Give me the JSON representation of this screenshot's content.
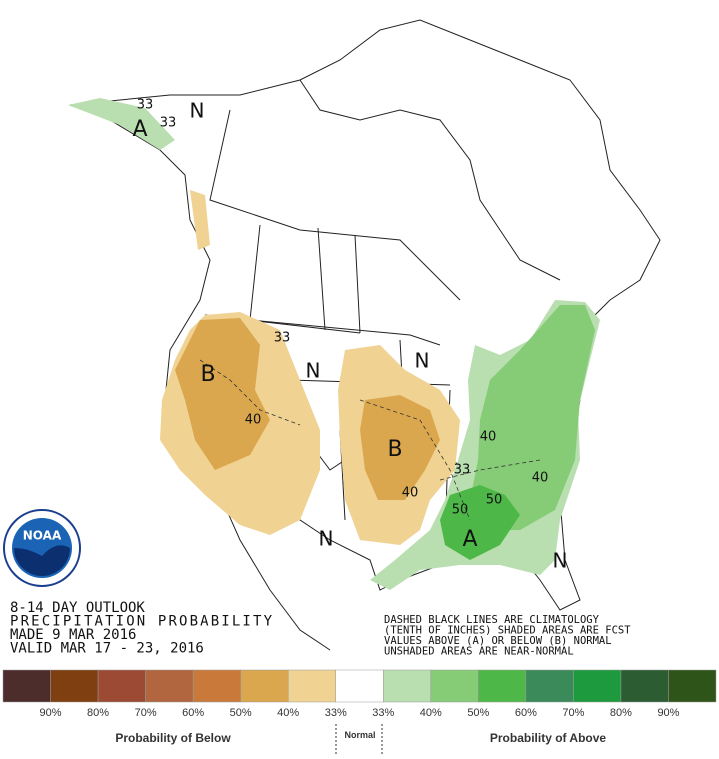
{
  "map": {
    "labels": [
      "A",
      "33",
      "33",
      "N",
      "B",
      "33",
      "N",
      "40",
      "N",
      "B",
      "40",
      "33",
      "40",
      "50",
      "50",
      "A",
      "40",
      "N",
      "N"
    ]
  },
  "logo": "NOAA",
  "title_block": [
    "8-14 DAY OUTLOOK",
    "PRECIPITATION PROBABILITY",
    "MADE  9 MAR 2016",
    "VALID  MAR 17 - 23, 2016"
  ],
  "notes": [
    "DASHED BLACK LINES ARE CLIMATOLOGY",
    "(TENTH OF INCHES) SHADED AREAS ARE FCST",
    "VALUES ABOVE (A) OR BELOW (B) NORMAL",
    "UNSHADED AREAS ARE NEAR-NORMAL"
  ],
  "legend": {
    "colors": [
      "#4d2c2c",
      "#7f3f10",
      "#9c4a34",
      "#b1663f",
      "#c97a3a",
      "#dba74e",
      "#f0d293",
      "#ffffff",
      "#b9deb0",
      "#86cc77",
      "#4db848",
      "#3b8a5a",
      "#1e9a3e",
      "#2b5c32",
      "#2e5419"
    ],
    "labels": [
      "90%",
      "80%",
      "70%",
      "60%",
      "50%",
      "40%",
      "33%",
      "33%",
      "40%",
      "50%",
      "60%",
      "70%",
      "80%",
      "90%"
    ],
    "below": "Probability of Below",
    "normal": "Normal",
    "above": "Probability of Above"
  }
}
